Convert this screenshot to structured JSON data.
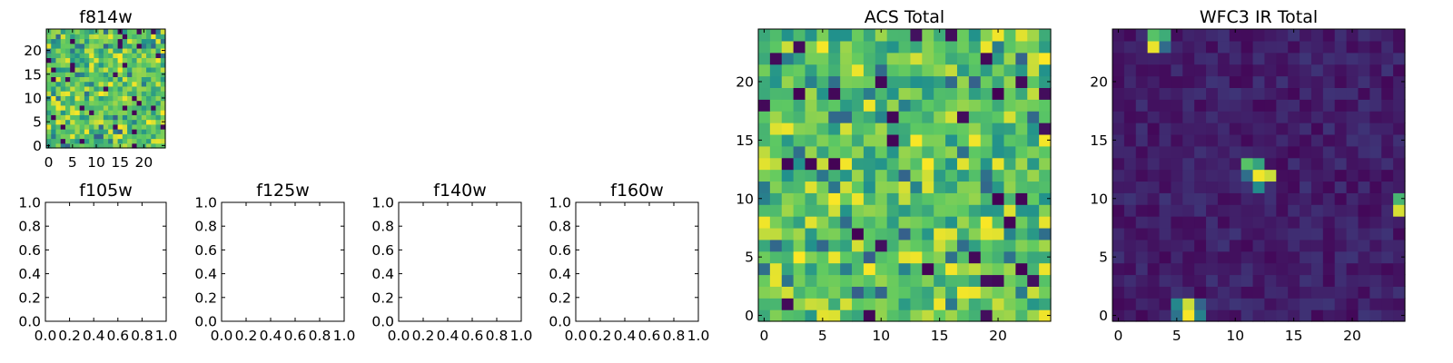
{
  "figure": {
    "background": "#ffffff",
    "colormap": [
      "#440154",
      "#3b528b",
      "#21918c",
      "#5ec962",
      "#fde725"
    ]
  },
  "chart_data": [
    {
      "type": "heatmap",
      "id": "f814w",
      "title": "f814w",
      "xlim": [
        -0.5,
        24.5
      ],
      "ylim": [
        -0.5,
        24.5
      ],
      "x_ticks": [
        0,
        5,
        10,
        15,
        20
      ],
      "y_ticks": [
        0,
        5,
        10,
        15,
        20
      ],
      "grid": 25,
      "pattern": "noise-high",
      "seed": 11
    },
    {
      "type": "scatter",
      "id": "f105w",
      "title": "f105w",
      "xlim": [
        0.0,
        1.0
      ],
      "ylim": [
        0.0,
        1.0
      ],
      "x_ticks": [
        "0.0",
        "0.2",
        "0.4",
        "0.6",
        "0.8",
        "1.0"
      ],
      "y_ticks": [
        "0.0",
        "0.2",
        "0.4",
        "0.6",
        "0.8",
        "1.0"
      ],
      "points": []
    },
    {
      "type": "scatter",
      "id": "f125w",
      "title": "f125w",
      "xlim": [
        0.0,
        1.0
      ],
      "ylim": [
        0.0,
        1.0
      ],
      "x_ticks": [
        "0.0",
        "0.2",
        "0.4",
        "0.6",
        "0.8",
        "1.0"
      ],
      "y_ticks": [
        "0.0",
        "0.2",
        "0.4",
        "0.6",
        "0.8",
        "1.0"
      ],
      "points": []
    },
    {
      "type": "scatter",
      "id": "f140w",
      "title": "f140w",
      "xlim": [
        0.0,
        1.0
      ],
      "ylim": [
        0.0,
        1.0
      ],
      "x_ticks": [
        "0.0",
        "0.2",
        "0.4",
        "0.6",
        "0.8",
        "1.0"
      ],
      "y_ticks": [
        "0.0",
        "0.2",
        "0.4",
        "0.6",
        "0.8",
        "1.0"
      ],
      "points": []
    },
    {
      "type": "scatter",
      "id": "f160w",
      "title": "f160w",
      "xlim": [
        0.0,
        1.0
      ],
      "ylim": [
        0.0,
        1.0
      ],
      "x_ticks": [
        "0.0",
        "0.2",
        "0.4",
        "0.6",
        "0.8",
        "1.0"
      ],
      "y_ticks": [
        "0.0",
        "0.2",
        "0.4",
        "0.6",
        "0.8",
        "1.0"
      ],
      "points": []
    },
    {
      "type": "heatmap",
      "id": "acs-total",
      "title": "ACS Total",
      "xlim": [
        -0.5,
        24.5
      ],
      "ylim": [
        -0.5,
        24.5
      ],
      "x_ticks": [
        0,
        5,
        10,
        15,
        20
      ],
      "y_ticks": [
        0,
        5,
        10,
        15,
        20
      ],
      "grid": 25,
      "pattern": "noise-high",
      "seed": 29
    },
    {
      "type": "heatmap",
      "id": "wfc3-ir-total",
      "title": "WFC3 IR Total",
      "xlim": [
        -0.5,
        24.5
      ],
      "ylim": [
        -0.5,
        24.5
      ],
      "x_ticks": [
        0,
        5,
        10,
        15,
        20
      ],
      "y_ticks": [
        0,
        5,
        10,
        15,
        20
      ],
      "grid": 25,
      "pattern": "noise-low",
      "seed": 47,
      "bright_cells": [
        {
          "x": 3,
          "y": 23,
          "v": 0.97
        },
        {
          "x": 3,
          "y": 24,
          "v": 0.72
        },
        {
          "x": 4,
          "y": 24,
          "v": 0.62
        },
        {
          "x": 4,
          "y": 23,
          "v": 0.35
        },
        {
          "x": 11,
          "y": 13,
          "v": 0.72
        },
        {
          "x": 12,
          "y": 13,
          "v": 0.58
        },
        {
          "x": 12,
          "y": 12,
          "v": 0.98
        },
        {
          "x": 13,
          "y": 12,
          "v": 0.92
        },
        {
          "x": 12,
          "y": 11,
          "v": 0.48
        },
        {
          "x": 11,
          "y": 12,
          "v": 0.36
        },
        {
          "x": 24,
          "y": 10,
          "v": 0.66
        },
        {
          "x": 24,
          "y": 9,
          "v": 0.94
        },
        {
          "x": 5,
          "y": 1,
          "v": 0.46
        },
        {
          "x": 6,
          "y": 1,
          "v": 0.92
        },
        {
          "x": 6,
          "y": 0,
          "v": 0.99
        },
        {
          "x": 5,
          "y": 0,
          "v": 0.38
        },
        {
          "x": 7,
          "y": 0,
          "v": 0.44
        },
        {
          "x": 7,
          "y": 1,
          "v": 0.32
        }
      ]
    }
  ]
}
